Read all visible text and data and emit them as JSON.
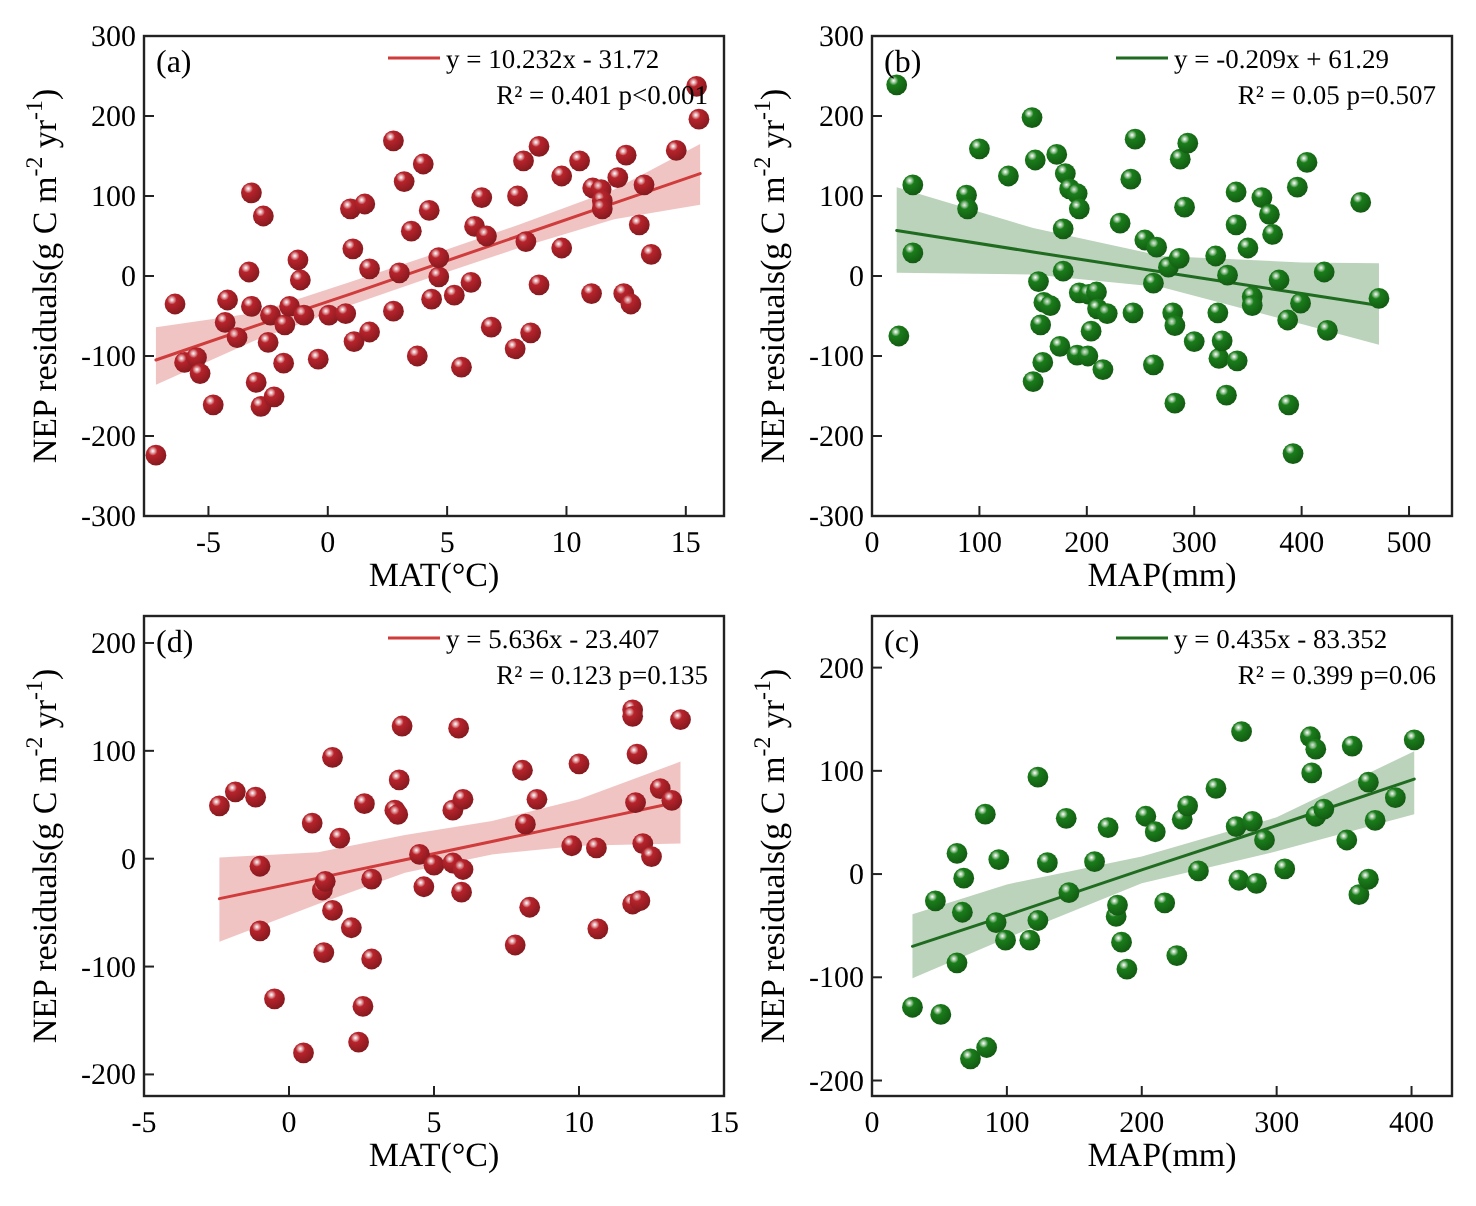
{
  "chart_data": [
    {
      "type": "scatter",
      "xlabel": "MAT(°C)",
      "ylabel": "NEP residuals(g C m$^{-2}$ yr$^{-1}$)",
      "xlim": [
        -7.7,
        16.6
      ],
      "ylim": [
        -300,
        300
      ],
      "xticks": [
        -5,
        0,
        5,
        10,
        15
      ],
      "yticks": [
        -300,
        -200,
        -100,
        0,
        100,
        200,
        300
      ],
      "grid": false,
      "legend": "top right",
      "marker": "circle",
      "annotations": [
        "(a)",
        "R² = 0.401  p<0.001"
      ],
      "series": [
        {
          "type": "line",
          "name": "y = 10.232x - 31.72",
          "color": "#d03b3b",
          "x": [
            -7.2,
            -3,
            1,
            4,
            8,
            12,
            15.6
          ],
          "values": [
            -105,
            -62,
            -22,
            9,
            50,
            91,
            128
          ],
          "marker": "none",
          "lower": [
            -136,
            -80,
            -36,
            -5,
            35,
            71,
            89
          ],
          "upper": [
            -64,
            -46,
            -7,
            23,
            64,
            108,
            165
          ],
          "line_style": "solid"
        },
        {
          "color": "#b8232b",
          "x": [
            -7.2,
            -6.4,
            -6.0,
            -5.5,
            -5.35,
            -4.8,
            -4.3,
            -4.2,
            -3.8,
            -3.3,
            -3.2,
            -3.2,
            -3.0,
            -2.8,
            -2.7,
            -2.5,
            -2.4,
            -2.25,
            -1.85,
            -1.8,
            -1.6,
            -1.25,
            -1.15,
            -1.0,
            -0.4,
            0.05,
            0.75,
            0.95,
            1.05,
            1.1,
            1.55,
            1.75,
            1.75,
            2.75,
            2.75,
            3.0,
            3.2,
            3.5,
            3.75,
            4.0,
            4.25,
            4.35,
            4.65,
            4.65,
            5.3,
            5.6,
            6.0,
            6.15,
            6.45,
            6.65,
            6.85,
            7.85,
            7.95,
            8.2,
            8.3,
            8.5,
            8.85,
            8.85,
            9.8,
            9.8,
            10.55,
            11.05,
            11.1,
            11.45,
            11.5,
            11.5,
            12.15,
            12.4,
            12.5,
            12.7,
            13.05,
            13.25,
            13.55,
            14.6,
            15.45,
            15.55
          ],
          "values": [
            -224,
            -35,
            -108,
            -102,
            -122,
            -161,
            -58,
            -30,
            -77,
            5,
            -38,
            104,
            -133,
            -163,
            75,
            -83,
            -49,
            -151,
            -109,
            -61,
            -38,
            20,
            -5,
            -49,
            -104,
            -49,
            -47,
            84,
            34,
            -82,
            90,
            9,
            -70,
            169,
            -44,
            4,
            118,
            56,
            -100,
            140,
            82,
            -29,
            -1,
            23,
            -24,
            -114,
            -8,
            62,
            98,
            50,
            -64,
            -91,
            100,
            144,
            43,
            -71,
            162,
            -11,
            35,
            125,
            144,
            -22,
            110,
            108,
            94,
            84,
            123,
            -22,
            151,
            -35,
            64,
            114,
            27,
            157,
            237,
            196
          ]
        }
      ]
    },
    {
      "type": "scatter",
      "xlabel": "MAP(mm)",
      "ylabel": "NEP residuals(g C m$^{-2}$ yr$^{-1}$)",
      "xlim": [
        0,
        540
      ],
      "ylim": [
        -300,
        300
      ],
      "xticks": [
        0,
        100,
        200,
        300,
        400,
        500
      ],
      "yticks": [
        -300,
        -200,
        -100,
        0,
        100,
        200,
        300
      ],
      "grid": false,
      "legend": "top right",
      "marker": "circle",
      "annotations": [
        "(b)",
        "R² = 0.05  p=0.507"
      ],
      "series": [
        {
          "type": "line",
          "name": "y = -0.209x + 61.29",
          "color": "#1f6b1f",
          "x": [
            23,
            150,
            270,
            400,
            472
          ],
          "values": [
            57,
            30,
            5,
            -22,
            -37
          ],
          "marker": "none",
          "lower": [
            4,
            2,
            -14,
            -60,
            -86
          ],
          "upper": [
            111,
            60,
            25,
            17,
            16
          ],
          "line_style": "solid"
        },
        {
          "color": "#1a7d1a",
          "x": [
            23,
            25,
            38,
            38,
            88,
            89,
            100,
            127,
            149,
            150,
            152,
            155,
            157,
            159,
            160,
            166,
            172,
            175,
            178,
            178,
            180,
            184,
            191,
            193,
            193,
            191,
            201,
            202,
            204,
            209,
            210,
            215,
            219,
            231,
            241,
            243,
            245,
            254,
            262,
            262,
            265,
            276,
            280,
            282,
            282,
            286,
            287,
            291,
            294,
            300,
            320,
            322,
            323,
            326,
            330,
            331,
            339,
            339,
            340,
            350,
            354,
            354,
            363,
            370,
            373,
            379,
            387,
            388,
            392,
            396,
            399,
            405,
            421,
            424,
            455,
            472
          ],
          "values": [
            239,
            -75,
            114,
            29,
            101,
            84,
            159,
            125,
            198,
            -132,
            145,
            -7,
            -61,
            -108,
            -33,
            -37,
            152,
            -88,
            59,
            6,
            128,
            109,
            103,
            -21,
            84,
            -99,
            -100,
            -23,
            -69,
            -20,
            -41,
            -117,
            -47,
            66,
            121,
            -46,
            171,
            45,
            -111,
            -9,
            36,
            11,
            -46,
            -62,
            -159,
            22,
            146,
            86,
            166,
            -82,
            25,
            -46,
            -103,
            -81,
            -149,
            1,
            105,
            64,
            -106,
            35,
            -26,
            -37,
            98,
            77,
            52,
            -5,
            -55,
            -161,
            -222,
            111,
            -34,
            142,
            5,
            -68,
            92,
            -28
          ]
        }
      ]
    },
    {
      "type": "scatter",
      "xlabel": "MAT(°C)",
      "ylabel": "NEP residuals(g C m$^{-2}$ yr$^{-1}$)",
      "xlim": [
        -5,
        15
      ],
      "ylim": [
        -220,
        225
      ],
      "xticks": [
        -5,
        0,
        5,
        10,
        15
      ],
      "yticks": [
        -200,
        -100,
        0,
        100,
        200
      ],
      "grid": false,
      "legend": "top right",
      "marker": "circle",
      "annotations": [
        "(d)",
        "R² = 0.123  p=0.135"
      ],
      "series": [
        {
          "type": "line",
          "name": "y =  5.636x - 23.407",
          "color": "#d03b3b",
          "x": [
            -2.4,
            1,
            4,
            7,
            10,
            13.5
          ],
          "values": [
            -37,
            -18,
            -1,
            16,
            33,
            53
          ],
          "marker": "none",
          "lower": [
            -77,
            -42,
            -13,
            4,
            12,
            14
          ],
          "upper": [
            1,
            6,
            22,
            35,
            55,
            90
          ],
          "line_style": "solid"
        },
        {
          "color": "#b8232b",
          "x": [
            -2.4,
            -1.85,
            -1.15,
            -1.0,
            -1.0,
            -0.5,
            0.5,
            0.8,
            1.15,
            1.25,
            1.2,
            1.5,
            1.5,
            1.75,
            2.15,
            2.4,
            2.55,
            2.6,
            2.85,
            2.85,
            3.65,
            3.75,
            3.8,
            3.9,
            4.5,
            4.65,
            5.0,
            5.65,
            5.65,
            5.85,
            6.0,
            6.0,
            5.95,
            7.8,
            8.05,
            8.15,
            8.3,
            8.55,
            9.75,
            10.0,
            10.6,
            10.65,
            11.85,
            11.85,
            11.85,
            11.95,
            12.0,
            12.1,
            12.2,
            12.5,
            12.8,
            13.2,
            13.5
          ],
          "values": [
            49,
            62,
            57,
            -7,
            -67,
            -130,
            -180,
            33,
            -29,
            -21,
            -87,
            -48,
            94,
            19,
            -64,
            -170,
            -137,
            51,
            -19,
            -93,
            45,
            41,
            73,
            123,
            4,
            -26,
            -6,
            45,
            -4,
            121,
            55,
            -10,
            -31,
            -80,
            82,
            32,
            -45,
            55,
            12,
            88,
            10,
            -65,
            -42,
            138,
            132,
            52,
            97,
            -39,
            14,
            2,
            65,
            54,
            129
          ]
        }
      ]
    },
    {
      "type": "scatter",
      "xlabel": "MAP(mm)",
      "ylabel": "NEP residuals(g C m$^{-2}$ yr$^{-1}$)",
      "xlim": [
        0,
        430
      ],
      "ylim": [
        -215,
        250
      ],
      "xticks": [
        0,
        100,
        200,
        300,
        400
      ],
      "yticks": [
        -200,
        -100,
        0,
        100,
        200
      ],
      "grid": false,
      "legend": "top right",
      "marker": "circle",
      "annotations": [
        "(c)",
        "R² = 0.399  p=0.06"
      ],
      "series": [
        {
          "type": "line",
          "name": "y = 0.435x - 83.352",
          "color": "#1f6b1f",
          "x": [
            30,
            100,
            200,
            300,
            402
          ],
          "values": [
            -70,
            -40,
            4,
            47,
            92
          ],
          "marker": "none",
          "lower": [
            -101,
            -62,
            -9,
            22,
            58
          ],
          "upper": [
            -39,
            -10,
            17,
            55,
            119
          ],
          "line_style": "solid"
        },
        {
          "color": "#1a7d1a",
          "x": [
            30,
            47,
            51,
            63,
            63,
            67,
            68,
            73,
            84,
            85,
            92,
            94,
            99,
            117,
            123,
            123,
            130,
            144,
            146,
            165,
            175,
            181,
            182,
            185,
            189,
            203,
            210,
            217,
            226,
            230,
            234,
            242,
            255,
            270,
            272,
            274,
            282,
            285,
            291,
            306,
            325,
            326,
            329,
            329,
            335,
            352,
            356,
            361,
            368,
            368,
            373,
            388,
            402
          ],
          "values": [
            -129,
            -26,
            -136,
            20,
            -86,
            -37,
            -4,
            -179,
            58,
            -168,
            -47,
            14,
            -64,
            -64,
            94,
            -45,
            11,
            54,
            -18,
            12,
            45,
            -41,
            -30,
            -66,
            -92,
            56,
            41,
            -28,
            -79,
            53,
            66,
            3,
            83,
            46,
            -6,
            138,
            51,
            -9,
            33,
            5,
            133,
            98,
            121,
            56,
            63,
            33,
            124,
            -20,
            -5,
            89,
            52,
            74,
            130
          ]
        }
      ]
    }
  ]
}
